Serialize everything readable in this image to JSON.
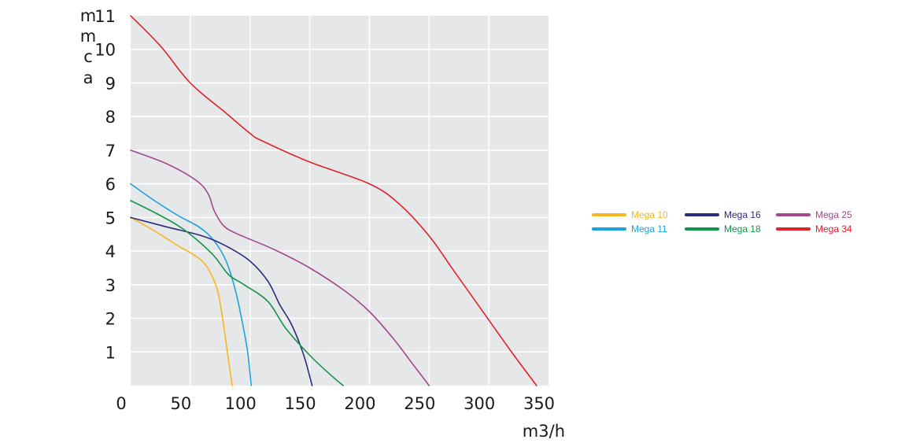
{
  "chart_data": {
    "type": "line",
    "title": "",
    "xlabel": "m3/h",
    "ylabel_letters": [
      "m",
      "m",
      "c",
      "a"
    ],
    "xlim": [
      0,
      350
    ],
    "ylim": [
      0,
      11
    ],
    "x_ticks": [
      0,
      50,
      100,
      150,
      200,
      250,
      300,
      350
    ],
    "x_tick_labels": [
      "0",
      "50",
      "100",
      "150",
      "200",
      "250",
      "300",
      "350"
    ],
    "y_ticks": [
      1,
      2,
      3,
      4,
      5,
      6,
      7,
      8,
      9,
      10,
      11
    ],
    "y_tick_labels": [
      "1",
      "2",
      "3",
      "4",
      "5",
      "6",
      "7",
      "8",
      "9",
      "10",
      "11"
    ],
    "grid": true,
    "plot_background": "#e6e7e8",
    "grid_color": "#ffffff",
    "legend_position": "right",
    "series": [
      {
        "name": "Mega 10",
        "color": "#f4b81c",
        "points": [
          [
            0,
            5.0
          ],
          [
            20,
            4.6
          ],
          [
            40,
            4.15
          ],
          [
            50,
            3.95
          ],
          [
            60,
            3.7
          ],
          [
            67,
            3.35
          ],
          [
            73,
            2.8
          ],
          [
            77,
            2.0
          ],
          [
            81,
            1.0
          ],
          [
            85,
            0.0
          ]
        ]
      },
      {
        "name": "Mega 11",
        "color": "#1aa3dd",
        "points": [
          [
            0,
            6.0
          ],
          [
            20,
            5.5
          ],
          [
            40,
            5.05
          ],
          [
            58,
            4.7
          ],
          [
            70,
            4.3
          ],
          [
            80,
            3.7
          ],
          [
            88,
            2.8
          ],
          [
            94,
            1.8
          ],
          [
            98,
            1.0
          ],
          [
            101,
            0.0
          ]
        ]
      },
      {
        "name": "Mega 16",
        "color": "#2a2b7f",
        "points": [
          [
            0,
            5.0
          ],
          [
            30,
            4.72
          ],
          [
            60,
            4.45
          ],
          [
            80,
            4.15
          ],
          [
            100,
            3.7
          ],
          [
            115,
            3.1
          ],
          [
            125,
            2.4
          ],
          [
            135,
            1.8
          ],
          [
            145,
            0.9
          ],
          [
            152,
            0.0
          ]
        ]
      },
      {
        "name": "Mega 18",
        "color": "#0f9648",
        "points": [
          [
            0,
            5.5
          ],
          [
            20,
            5.15
          ],
          [
            40,
            4.75
          ],
          [
            55,
            4.35
          ],
          [
            70,
            3.85
          ],
          [
            82,
            3.3
          ],
          [
            95,
            3.0
          ],
          [
            115,
            2.5
          ],
          [
            130,
            1.7
          ],
          [
            150,
            0.9
          ],
          [
            168,
            0.3
          ],
          [
            178,
            0.0
          ]
        ]
      },
      {
        "name": "Mega 25",
        "color": "#a2488e",
        "points": [
          [
            0,
            7.0
          ],
          [
            30,
            6.6
          ],
          [
            55,
            6.1
          ],
          [
            65,
            5.7
          ],
          [
            70,
            5.2
          ],
          [
            78,
            4.75
          ],
          [
            90,
            4.5
          ],
          [
            120,
            4.05
          ],
          [
            150,
            3.5
          ],
          [
            180,
            2.8
          ],
          [
            200,
            2.2
          ],
          [
            220,
            1.4
          ],
          [
            235,
            0.7
          ],
          [
            250,
            0.0
          ]
        ]
      },
      {
        "name": "Mega 34",
        "color": "#e0202b",
        "points": [
          [
            0,
            11.0
          ],
          [
            25,
            10.1
          ],
          [
            50,
            9.0
          ],
          [
            80,
            8.1
          ],
          [
            100,
            7.5
          ],
          [
            110,
            7.28
          ],
          [
            150,
            6.65
          ],
          [
            200,
            6.0
          ],
          [
            225,
            5.4
          ],
          [
            250,
            4.45
          ],
          [
            270,
            3.45
          ],
          [
            300,
            1.95
          ],
          [
            320,
            0.95
          ],
          [
            340,
            0.0
          ]
        ]
      }
    ]
  }
}
